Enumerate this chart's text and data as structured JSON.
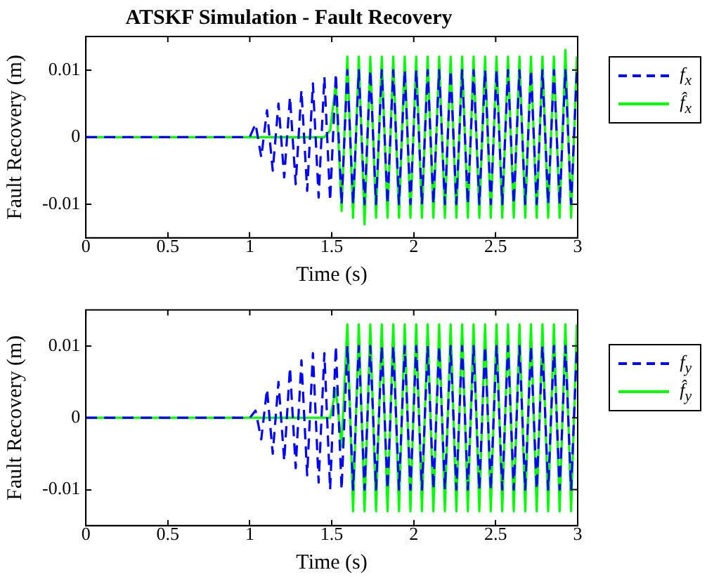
{
  "chart_data": [
    {
      "type": "line",
      "title": "ATSKF Simulation - Fault Recovery",
      "xlabel": "Time (s)",
      "ylabel": "Fault Recovery (m)",
      "x": [
        0,
        1.0,
        1.035,
        1.07,
        1.105,
        1.14,
        1.175,
        1.21,
        1.245,
        1.28,
        1.315,
        1.35,
        1.385,
        1.42,
        1.455,
        1.49,
        1.525,
        1.56,
        1.595,
        1.63,
        1.665,
        1.7,
        1.735,
        1.77,
        1.805,
        1.84,
        1.875,
        1.91,
        1.945,
        1.98,
        2.015,
        2.05,
        2.085,
        2.12,
        2.155,
        2.19,
        2.225,
        2.26,
        2.295,
        2.33,
        2.365,
        2.4,
        2.435,
        2.47,
        2.505,
        2.54,
        2.575,
        2.61,
        2.645,
        2.68,
        2.715,
        2.75,
        2.785,
        2.82,
        2.855,
        2.89,
        2.925,
        2.96,
        2.995
      ],
      "series": [
        {
          "name": "f$_{x}$",
          "color": "#0000ff",
          "line_style": "dashed",
          "values": [
            0,
            0,
            0.002,
            -0.003,
            0.004,
            -0.005,
            0.005,
            -0.006,
            0.006,
            -0.007,
            0.007,
            -0.008,
            0.008,
            -0.009,
            0.009,
            -0.0095,
            0.0095,
            -0.01,
            0.01,
            -0.01,
            0.01,
            -0.01,
            0.01,
            -0.01,
            0.01,
            -0.01,
            0.01,
            -0.01,
            0.01,
            -0.01,
            0.01,
            -0.01,
            0.01,
            -0.01,
            0.01,
            -0.01,
            0.01,
            -0.01,
            0.01,
            -0.01,
            0.01,
            -0.01,
            0.01,
            -0.01,
            0.01,
            -0.01,
            0.01,
            -0.01,
            0.01,
            -0.01,
            0.01,
            -0.01,
            0.01,
            -0.01,
            0.01,
            -0.01,
            0.01,
            -0.01,
            0.01
          ]
        },
        {
          "name": "f̂$_{x}$",
          "color": "#00ff00",
          "line_style": "solid",
          "values": [
            0,
            0,
            0,
            0,
            0,
            0,
            0,
            0,
            0,
            0,
            0,
            0,
            0,
            0,
            0,
            0.001,
            0.008,
            -0.011,
            0.012,
            -0.012,
            0.012,
            -0.013,
            0.012,
            -0.012,
            0.012,
            -0.012,
            0.012,
            -0.012,
            0.012,
            -0.012,
            0.012,
            -0.012,
            0.012,
            -0.012,
            0.012,
            -0.012,
            0.012,
            -0.012,
            0.012,
            -0.012,
            0.012,
            -0.012,
            0.012,
            -0.012,
            0.012,
            -0.012,
            0.012,
            -0.012,
            0.012,
            -0.012,
            0.012,
            -0.012,
            0.012,
            -0.012,
            0.012,
            -0.012,
            0.013,
            -0.012,
            0.012
          ]
        }
      ],
      "xlim": [
        0,
        3
      ],
      "xticks": [
        0,
        0.5,
        1,
        1.5,
        2,
        2.5,
        3
      ],
      "ylim": [
        -0.015,
        0.015
      ],
      "yticks": [
        -0.01,
        0,
        0.01
      ],
      "grid": false,
      "legend": "right",
      "marker": "none"
    },
    {
      "type": "line",
      "xlabel": "Time (s)",
      "ylabel": "Fault Recovery (m)",
      "x": [
        0,
        1.0,
        1.035,
        1.07,
        1.105,
        1.14,
        1.175,
        1.21,
        1.245,
        1.28,
        1.315,
        1.35,
        1.385,
        1.42,
        1.455,
        1.49,
        1.525,
        1.56,
        1.595,
        1.63,
        1.665,
        1.7,
        1.735,
        1.77,
        1.805,
        1.84,
        1.875,
        1.91,
        1.945,
        1.98,
        2.015,
        2.05,
        2.085,
        2.12,
        2.155,
        2.19,
        2.225,
        2.26,
        2.295,
        2.33,
        2.365,
        2.4,
        2.435,
        2.47,
        2.505,
        2.54,
        2.575,
        2.61,
        2.645,
        2.68,
        2.715,
        2.75,
        2.785,
        2.82,
        2.855,
        2.89,
        2.925,
        2.96,
        2.995
      ],
      "series": [
        {
          "name": "f$_{y}$",
          "color": "#0000ff",
          "line_style": "dashed",
          "values": [
            0,
            0,
            0.001,
            -0.003,
            0.004,
            -0.005,
            0.005,
            -0.006,
            0.007,
            -0.007,
            0.008,
            -0.008,
            0.009,
            -0.009,
            0.009,
            -0.01,
            0.01,
            -0.01,
            0.01,
            -0.01,
            0.01,
            -0.01,
            0.01,
            -0.01,
            0.01,
            -0.01,
            0.01,
            -0.01,
            0.01,
            -0.01,
            0.01,
            -0.01,
            0.01,
            -0.01,
            0.01,
            -0.01,
            0.01,
            -0.01,
            0.01,
            -0.01,
            0.01,
            -0.01,
            0.01,
            -0.01,
            0.01,
            -0.01,
            0.01,
            -0.01,
            0.01,
            -0.01,
            0.01,
            -0.01,
            0.01,
            -0.01,
            0.01,
            -0.01,
            0.01,
            -0.01,
            0.01
          ]
        },
        {
          "name": "f̂$_{y}$",
          "color": "#00ff00",
          "line_style": "solid",
          "values": [
            0,
            0,
            0,
            0,
            0,
            0,
            0,
            0,
            0,
            0,
            0,
            0,
            0,
            0,
            0,
            0,
            0.004,
            -0.004,
            0.013,
            -0.013,
            0.013,
            -0.013,
            0.013,
            -0.013,
            0.013,
            -0.013,
            0.013,
            -0.013,
            0.013,
            -0.013,
            0.013,
            -0.013,
            0.013,
            -0.013,
            0.013,
            -0.013,
            0.013,
            -0.013,
            0.013,
            -0.013,
            0.013,
            -0.013,
            0.013,
            -0.013,
            0.013,
            -0.013,
            0.013,
            -0.013,
            0.013,
            -0.013,
            0.013,
            -0.013,
            0.013,
            -0.013,
            0.013,
            -0.013,
            0.013,
            -0.013,
            0.013
          ]
        }
      ],
      "xlim": [
        0,
        3
      ],
      "xticks": [
        0,
        0.5,
        1,
        1.5,
        2,
        2.5,
        3
      ],
      "ylim": [
        -0.015,
        0.015
      ],
      "yticks": [
        -0.01,
        0,
        0.01
      ],
      "grid": false,
      "legend": "right",
      "marker": "none"
    }
  ]
}
